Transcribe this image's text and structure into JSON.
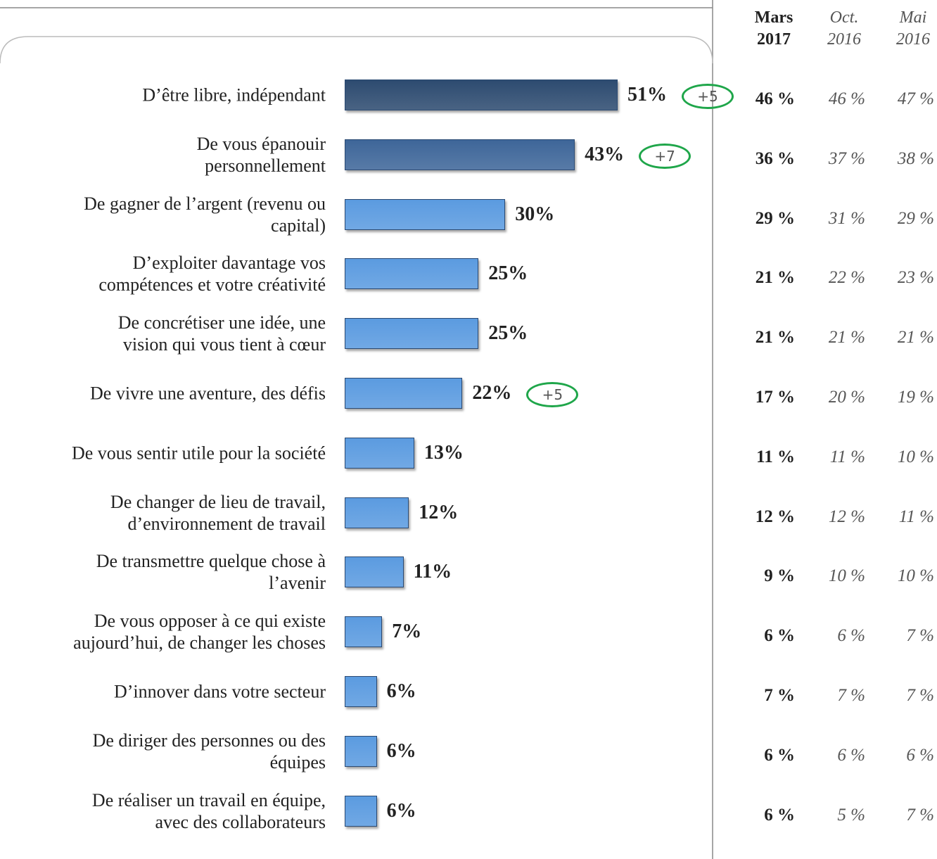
{
  "chart_data": {
    "type": "bar",
    "orientation": "horizontal",
    "categories": [
      "D’être libre, indépendant",
      "De vous épanouir\npersonnellement",
      "De gagner de l’argent (revenu ou\ncapital)",
      "D’exploiter davantage vos\ncompétences et votre créativité",
      "De concrétiser une idée, une\nvision qui vous tient à cœur",
      "De vivre une aventure, des défis",
      "De vous sentir utile pour la société",
      "De changer de lieu de travail,\nd’environnement de travail",
      "De transmettre quelque chose à\nl’avenir",
      "De vous opposer à ce qui existe\naujourd’hui, de changer les choses",
      "D’innover dans votre secteur",
      "De diriger des personnes ou des\néquipes",
      "De réaliser un travail en équipe,\navec des collaborateurs"
    ],
    "values": [
      51,
      43,
      30,
      25,
      25,
      22,
      13,
      12,
      11,
      7,
      6,
      6,
      6
    ],
    "value_labels": [
      "51%",
      "43%",
      "30%",
      "25%",
      "25%",
      "22%",
      "13%",
      "12%",
      "11%",
      "7%",
      "6%",
      "6%",
      "6%"
    ],
    "colors": [
      "#2d4b70",
      "#3e6699",
      "#5b9be0",
      "#5b9be0",
      "#5b9be0",
      "#5b9be0",
      "#5b9be0",
      "#5b9be0",
      "#5b9be0",
      "#5b9be0",
      "#5b9be0",
      "#5b9be0",
      "#5b9be0"
    ],
    "changes": [
      "+5",
      "+7",
      null,
      null,
      null,
      "+5",
      null,
      null,
      null,
      null,
      null,
      null,
      null
    ],
    "table": [
      {
        "header": "Mars\n2017",
        "values": [
          "46 %",
          "36 %",
          "29 %",
          "21 %",
          "21 %",
          "17 %",
          "11 %",
          "12 %",
          "9 %",
          "6 %",
          "7 %",
          "6 %",
          "6 %"
        ]
      },
      {
        "header": "Oct.\n2016",
        "values": [
          "46 %",
          "37 %",
          "31 %",
          "22 %",
          "21 %",
          "20 %",
          "11 %",
          "12 %",
          "10 %",
          "6 %",
          "7 %",
          "6 %",
          "5 %"
        ]
      },
      {
        "header": "Mai\n2016",
        "values": [
          "47 %",
          "38 %",
          "29 %",
          "23 %",
          "21 %",
          "19 %",
          "10 %",
          "11 %",
          "10 %",
          "7 %",
          "7 %",
          "6 %",
          "7 %"
        ]
      }
    ]
  }
}
